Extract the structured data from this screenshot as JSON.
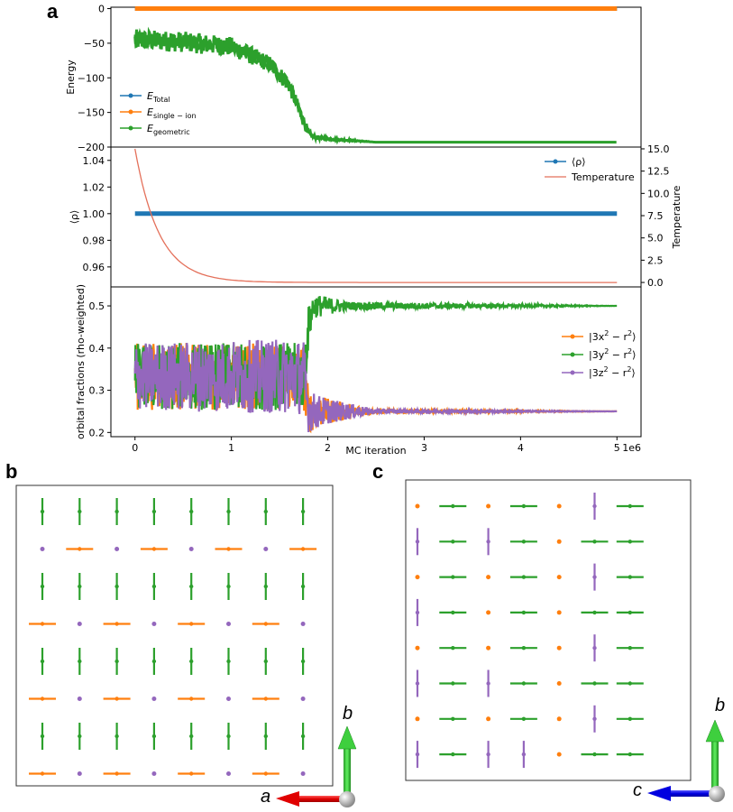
{
  "panels": {
    "a": "a",
    "b": "b",
    "c": "c"
  },
  "colors": {
    "total": "#1f77b4",
    "single_ion": "#ff7f0e",
    "geometric": "#2ca02c",
    "temperature": "#e4705a",
    "orb_x": "#ff7f0e",
    "orb_y": "#2ca02c",
    "orb_z": "#9467bd",
    "axis_a": "#ff0000",
    "axis_b": "#00cc00",
    "axis_c": "#0000ff"
  },
  "chart_data": [
    {
      "type": "line",
      "ylabel": "Energy",
      "ylim": [
        -200,
        2
      ],
      "yticks": [
        0,
        -50,
        -100,
        -150,
        -200
      ],
      "xlim": [
        -0.25,
        5.25
      ],
      "legend_position": "lower-left",
      "series": [
        {
          "name": "E_Total",
          "label_main": "E",
          "label_sub": "Total",
          "x": [
            0,
            5
          ],
          "y": [
            0,
            0
          ]
        },
        {
          "name": "E_single-ion",
          "label_main": "E",
          "label_sub": "single − ion",
          "x": [
            0,
            5
          ],
          "y": [
            0,
            0
          ]
        },
        {
          "name": "E_geometric",
          "label_main": "E",
          "label_sub": "geometric",
          "x": [
            0,
            0.5,
            1.0,
            1.4,
            1.6,
            1.8,
            1.85,
            2.0,
            2.3,
            2.5,
            5.0
          ],
          "y": [
            -45,
            -48,
            -55,
            -80,
            -110,
            -180,
            -185,
            -188,
            -191,
            -193,
            -193
          ],
          "noise_amplitude": [
            15,
            15,
            14,
            12,
            12,
            6,
            3,
            2,
            1,
            0,
            0
          ]
        }
      ]
    },
    {
      "type": "line",
      "ylabel": "⟨ρ⟩",
      "ylabel_right": "Temperature",
      "ylim": [
        0.945,
        1.05
      ],
      "yticks": [
        0.96,
        0.98,
        1.0,
        1.02,
        1.04
      ],
      "ylim_right": [
        -0.5,
        15.2
      ],
      "yticks_right": [
        0.0,
        2.5,
        5.0,
        7.5,
        10.0,
        12.5,
        15.0
      ],
      "legend_position": "top-right",
      "series": [
        {
          "name": "⟨ρ⟩",
          "x": [
            0,
            5
          ],
          "y": [
            1.0,
            1.0
          ]
        },
        {
          "name": "Temperature",
          "axis": "right",
          "T0": 15.0,
          "decay_per_1e6": 4.0,
          "x": [
            0,
            5
          ]
        }
      ]
    },
    {
      "type": "line",
      "ylabel": "orbital fractions (rho-weighted)",
      "xlabel": "MC iteration",
      "x_multiplier": "1e6",
      "xlim": [
        -0.25,
        5.25
      ],
      "xticks": [
        0,
        1,
        2,
        3,
        4,
        5
      ],
      "ylim": [
        0.19,
        0.545
      ],
      "yticks": [
        0.2,
        0.3,
        0.4,
        0.5
      ],
      "legend_position": "right",
      "series": [
        {
          "name": "|3x² − r²⟩",
          "label_text": "|3x",
          "label_end": " − r",
          "label_close": "⟩",
          "x": [
            0,
            1.75,
            1.8,
            2.0,
            2.5,
            5.0
          ],
          "y": [
            0.333,
            0.333,
            0.25,
            0.25,
            0.25,
            0.25
          ],
          "noise_amplitude": [
            0.08,
            0.08,
            0.05,
            0.03,
            0.005,
            0
          ]
        },
        {
          "name": "|3y² − r²⟩",
          "label_text": "|3y",
          "label_end": " − r",
          "label_close": "⟩",
          "x": [
            0,
            1.75,
            1.8,
            1.85,
            2.2,
            5.0
          ],
          "y": [
            0.333,
            0.333,
            0.45,
            0.5,
            0.5,
            0.5
          ],
          "noise_amplitude": [
            0.08,
            0.08,
            0.05,
            0.03,
            0.01,
            0
          ]
        },
        {
          "name": "|3z² − r²⟩",
          "label_text": "|3z",
          "label_end": " − r",
          "label_close": "⟩",
          "x": [
            0,
            1.75,
            1.8,
            2.0,
            2.5,
            5.0
          ],
          "y": [
            0.333,
            0.333,
            0.25,
            0.25,
            0.25,
            0.25
          ],
          "noise_amplitude": [
            0.08,
            0.09,
            0.05,
            0.03,
            0.005,
            0
          ]
        }
      ]
    }
  ],
  "lattice_b": {
    "axis_right": "a",
    "axis_up": "b",
    "rows": [
      "VVVVVVVV",
      "oHoHoHoH",
      "VVVVVVVV",
      "HoHoHoHo",
      "VVVVVVVV",
      "HoHoHoHo",
      "VVVVVVVV",
      "HoHoHoHo"
    ]
  },
  "lattice_c": {
    "axis_left": "c",
    "axis_up": "b",
    "rows": [
      "oHoHoVH",
      "VHVHoHH",
      "oHoHoVH",
      "VHoHoHH",
      "oHoHoVH",
      "VHVHoHH",
      "oHoHoVH",
      "VHVVoHH"
    ]
  },
  "legend_top": {
    "superscript": "2"
  }
}
